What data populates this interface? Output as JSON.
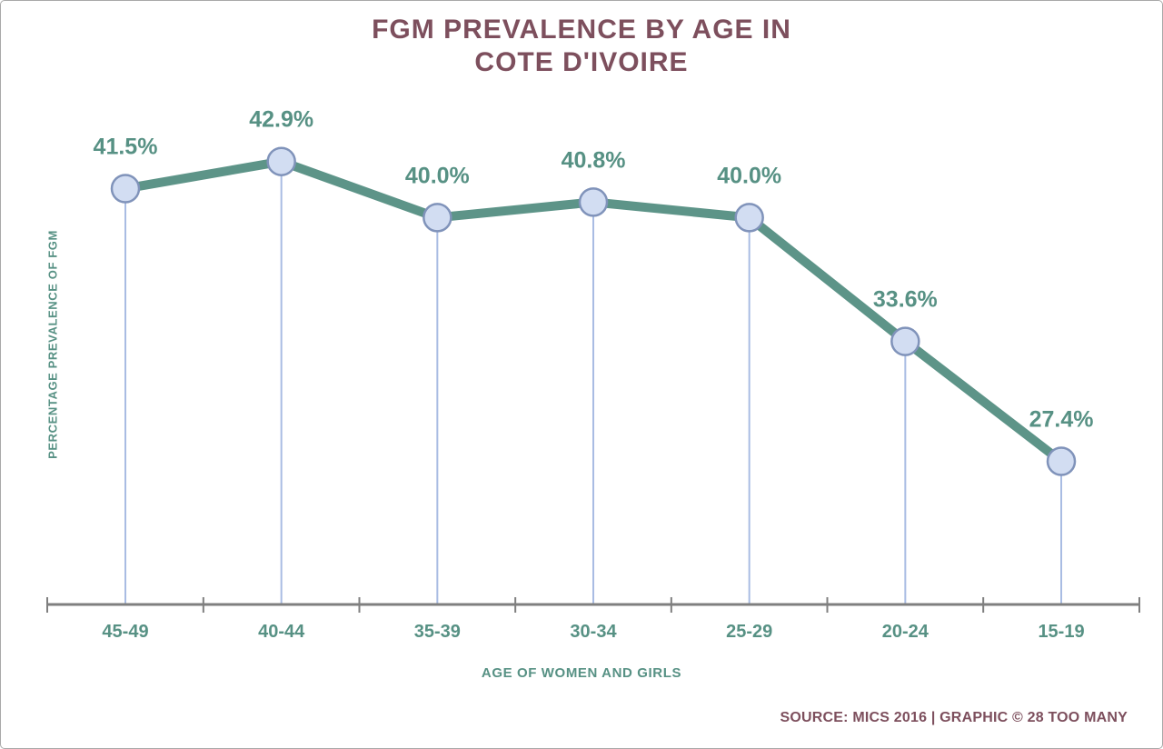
{
  "title": "FGM PREVALENCE BY AGE IN\nCOTE D'IVOIRE",
  "source": "SOURCE: MICS 2016 | GRAPHIC © 28 TOO MANY",
  "chart_data": {
    "type": "line",
    "title": "FGM PREVALENCE BY AGE IN COTE D'IVOIRE",
    "categories": [
      "45-49",
      "40-44",
      "35-39",
      "30-34",
      "25-29",
      "20-24",
      "15-19"
    ],
    "values": [
      41.5,
      42.9,
      40.0,
      40.8,
      40.0,
      33.6,
      27.4
    ],
    "value_label_format": "percent_one_decimal",
    "xlabel": "AGE OF WOMEN AND GIRLS",
    "ylabel": "PERCENTAGE PREVALENCE OF FGM",
    "ylim": [
      20,
      45
    ],
    "grid": false,
    "legend": "none",
    "marker": "circle",
    "drop_lines": true
  },
  "colors": {
    "title_text": "#7d4f5d",
    "teal_text": "#579184",
    "line": "#5d9488",
    "marker_fill": "#d2ddf2",
    "marker_stroke": "#8093ba",
    "drop_line": "#a9bce3",
    "axis": "#7f7f7f",
    "background": "#ffffff",
    "frame_border": "#a9a9a9"
  }
}
